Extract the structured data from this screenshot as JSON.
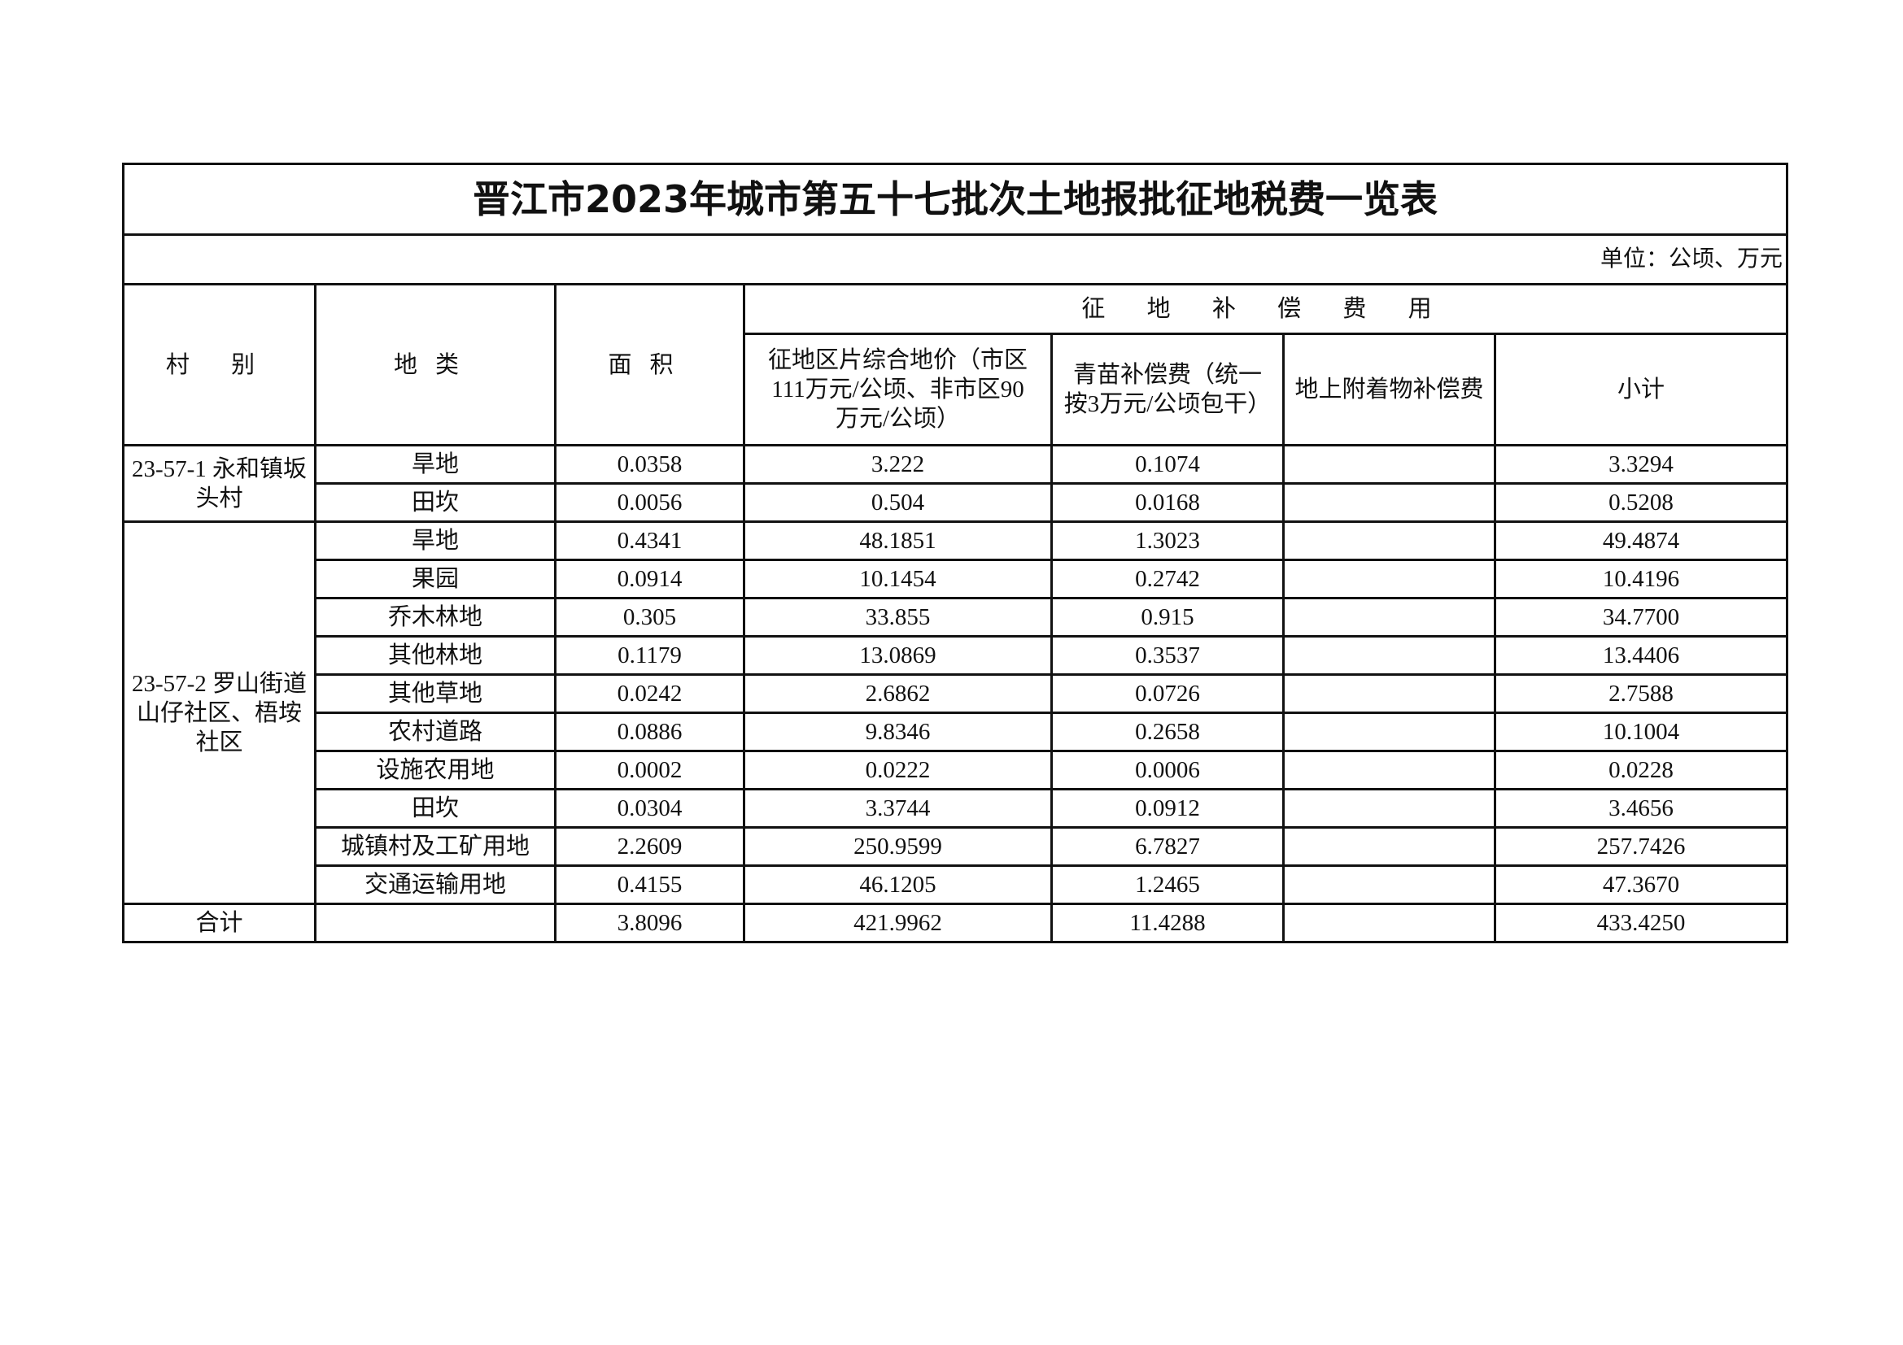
{
  "title": "晋江市2023年城市第五十七批次土地报批征地税费一览表",
  "unit": "单位：公顷、万元",
  "headers": {
    "village": "村 别",
    "land_type": "地类",
    "area": "面积",
    "compensation_group": "征 地 补 偿 费 用",
    "land_price": "征地区片综合地价（市区111万元/公顷、非市区90万元/公顷）",
    "crop_comp": "青苗补偿费（统一按3万元/公顷包干）",
    "attachment_comp": "地上附着物补偿费",
    "subtotal": "小计"
  },
  "groups": [
    {
      "village": "23-57-1 永和镇坂头村",
      "rows": [
        {
          "type": "旱地",
          "area": "0.0358",
          "price": "3.222",
          "crop": "0.1074",
          "attach": "",
          "subtotal": "3.3294"
        },
        {
          "type": "田坎",
          "area": "0.0056",
          "price": "0.504",
          "crop": "0.0168",
          "attach": "",
          "subtotal": "0.5208"
        }
      ]
    },
    {
      "village": "23-57-2 罗山街道山仔社区、梧垵社区",
      "rows": [
        {
          "type": "旱地",
          "area": "0.4341",
          "price": "48.1851",
          "crop": "1.3023",
          "attach": "",
          "subtotal": "49.4874"
        },
        {
          "type": "果园",
          "area": "0.0914",
          "price": "10.1454",
          "crop": "0.2742",
          "attach": "",
          "subtotal": "10.4196"
        },
        {
          "type": "乔木林地",
          "area": "0.305",
          "price": "33.855",
          "crop": "0.915",
          "attach": "",
          "subtotal": "34.7700"
        },
        {
          "type": "其他林地",
          "area": "0.1179",
          "price": "13.0869",
          "crop": "0.3537",
          "attach": "",
          "subtotal": "13.4406"
        },
        {
          "type": "其他草地",
          "area": "0.0242",
          "price": "2.6862",
          "crop": "0.0726",
          "attach": "",
          "subtotal": "2.7588"
        },
        {
          "type": "农村道路",
          "area": "0.0886",
          "price": "9.8346",
          "crop": "0.2658",
          "attach": "",
          "subtotal": "10.1004"
        },
        {
          "type": "设施农用地",
          "area": "0.0002",
          "price": "0.0222",
          "crop": "0.0006",
          "attach": "",
          "subtotal": "0.0228"
        },
        {
          "type": "田坎",
          "area": "0.0304",
          "price": "3.3744",
          "crop": "0.0912",
          "attach": "",
          "subtotal": "3.4656"
        },
        {
          "type": "城镇村及工矿用地",
          "area": "2.2609",
          "price": "250.9599",
          "crop": "6.7827",
          "attach": "",
          "subtotal": "257.7426"
        },
        {
          "type": "交通运输用地",
          "area": "0.4155",
          "price": "46.1205",
          "crop": "1.2465",
          "attach": "",
          "subtotal": "47.3670"
        }
      ]
    }
  ],
  "total": {
    "label": "合计",
    "type": "",
    "area": "3.8096",
    "price": "421.9962",
    "crop": "11.4288",
    "attach": "",
    "subtotal": "433.4250"
  }
}
